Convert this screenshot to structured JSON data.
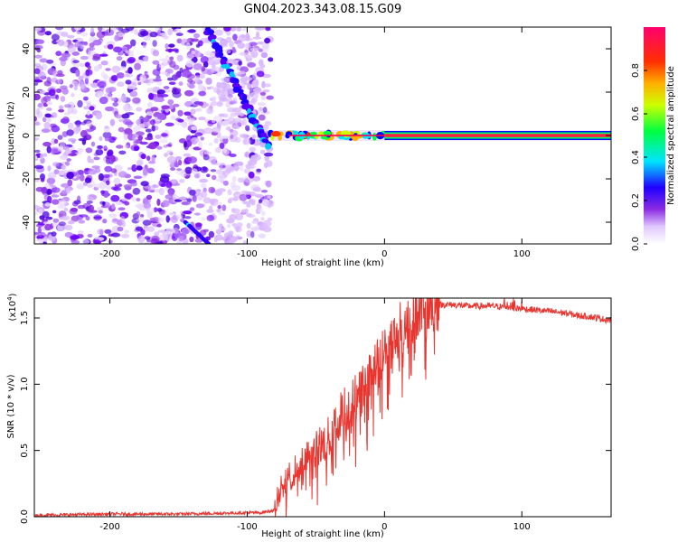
{
  "figure_title": "GN04.2023.343.08.15.G09",
  "chart_data": [
    {
      "type": "heatmap",
      "title": "GN04.2023.343.08.15.G09",
      "xlabel": "Height of straight line (km)",
      "ylabel": "Frequency (Hz)",
      "xlim": [
        -255,
        165
      ],
      "ylim": [
        -50,
        50
      ],
      "x_ticks": [
        -200,
        -100,
        0,
        100
      ],
      "y_ticks": [
        -40,
        -20,
        0,
        20,
        40
      ],
      "x_tick_labels": [
        "-200",
        "-100",
        "0",
        "100"
      ],
      "y_tick_labels": [
        "-40",
        "-20",
        "0",
        "20",
        "40"
      ],
      "colorbar": {
        "label": "Normalized spectral amplitude",
        "range": [
          0,
          1
        ],
        "ticks": [
          0.0,
          0.2,
          0.4,
          0.6,
          0.8
        ],
        "tick_labels": [
          "0.0",
          "0.2",
          "0.4",
          "0.6",
          "0.8"
        ],
        "colormap": [
          "#ffffff",
          "#d9b3ff",
          "#8a2be2",
          "#4b00ff",
          "#0000ff",
          "#00ffff",
          "#00ff00",
          "#ffff00",
          "#ff8000",
          "#ff0000",
          "#ff00a0"
        ]
      },
      "features": {
        "noise_region_x": [
          -255,
          -83
        ],
        "diagonal_streak": {
          "x": [
            -130,
            -85
          ],
          "y": [
            50,
            -5
          ]
        },
        "lower_streak": {
          "x": [
            -145,
            -128
          ],
          "y": [
            -40,
            -50
          ]
        },
        "signal_line": {
          "x_start": -83,
          "x_end": 165,
          "y": 0,
          "peak_amplitude": 0.9
        },
        "signal_onset_x": [
          -83,
          0
        ]
      },
      "grid": false
    },
    {
      "type": "line",
      "xlabel": "Height of straight line (km)",
      "ylabel": "SNR (10 * v/v)",
      "y_multiplier_label": "(x10",
      "y_multiplier_exp": "4",
      "y_multiplier_close": ")",
      "xlim": [
        -255,
        165
      ],
      "ylim": [
        0,
        1.65
      ],
      "x_ticks": [
        -200,
        -100,
        0,
        100
      ],
      "y_ticks": [
        0.0,
        0.5,
        1.0,
        1.5
      ],
      "x_tick_labels": [
        "-200",
        "-100",
        "0",
        "100"
      ],
      "y_tick_labels": [
        "0.0",
        "0.5",
        "1.0",
        "1.5"
      ],
      "series": [
        {
          "color": "#e8352f",
          "x": [
            -255,
            -200,
            -150,
            -100,
            -90,
            -80,
            -75,
            -70,
            -65,
            -60,
            -55,
            -50,
            -45,
            -40,
            -35,
            -30,
            -25,
            -20,
            -15,
            -10,
            -5,
            0,
            5,
            10,
            15,
            20,
            25,
            30,
            40,
            50,
            60,
            70,
            80,
            90,
            100,
            110,
            120,
            130,
            140,
            150,
            160,
            165
          ],
          "y": [
            0.01,
            0.02,
            0.02,
            0.03,
            0.03,
            0.05,
            0.25,
            0.3,
            0.35,
            0.4,
            0.45,
            0.5,
            0.55,
            0.6,
            0.72,
            0.8,
            0.85,
            0.9,
            1.0,
            1.05,
            1.15,
            1.25,
            1.32,
            1.4,
            1.47,
            1.52,
            1.55,
            1.58,
            1.6,
            1.6,
            1.59,
            1.59,
            1.59,
            1.58,
            1.57,
            1.56,
            1.55,
            1.54,
            1.52,
            1.51,
            1.49,
            1.48
          ]
        }
      ],
      "grid": false
    }
  ]
}
